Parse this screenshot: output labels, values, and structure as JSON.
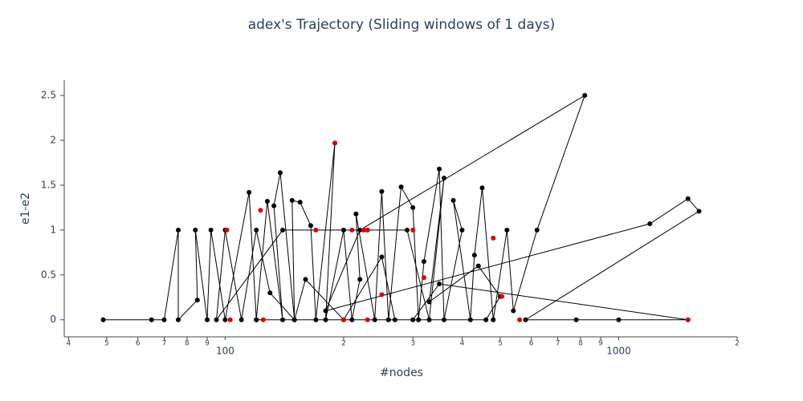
{
  "chart_data": {
    "type": "scatter",
    "title": "adex's Trajectory (Sliding windows of 1 days)",
    "x_label": "#nodes",
    "y_label": "e1-e2",
    "xscale": "log",
    "xlim": [
      39,
      2000
    ],
    "ylim": [
      -0.19,
      2.67
    ],
    "xticks": [
      {
        "value": 40,
        "label": "4"
      },
      {
        "value": 50,
        "label": "5"
      },
      {
        "value": 60,
        "label": "6"
      },
      {
        "value": 70,
        "label": "7"
      },
      {
        "value": 80,
        "label": "8"
      },
      {
        "value": 90,
        "label": "9"
      },
      100,
      {
        "value": 200,
        "label": "2"
      },
      {
        "value": 300,
        "label": "3"
      },
      {
        "value": 400,
        "label": "4"
      },
      {
        "value": 500,
        "label": "5"
      },
      {
        "value": 600,
        "label": "6"
      },
      {
        "value": 700,
        "label": "7"
      },
      {
        "value": 800,
        "label": "8"
      },
      {
        "value": 900,
        "label": "9"
      },
      1000,
      {
        "value": 2000,
        "label": "2"
      }
    ],
    "yticks": [
      0,
      0.5,
      1,
      1.5,
      2,
      2.5
    ],
    "series": [
      {
        "mode": "lines+markers",
        "color": "#000000",
        "x": [
          49,
          65,
          70,
          76,
          76,
          85,
          84,
          90,
          92,
          100,
          115,
          120,
          128,
          140,
          133,
          138,
          150,
          148,
          155,
          165,
          170,
          190,
          180,
          200,
          210,
          220,
          215,
          240,
          250,
          260,
          280,
          300,
          310,
          320,
          350,
          360,
          400,
          380,
          420,
          430,
          450,
          480,
          520,
          540,
          620,
          820,
          220,
          180,
          1200,
          1500,
          1600,
          580,
          1000,
          780,
          1500,
          350,
          300,
          270,
          250,
          200,
          160,
          150,
          130,
          120,
          110,
          100,
          95,
          140,
          230,
          290,
          330,
          360,
          330,
          440,
          500,
          460,
          120
        ],
        "values": [
          0,
          0,
          0,
          1,
          0,
          0.22,
          1,
          0,
          1,
          0,
          1.42,
          0,
          1.32,
          0,
          1.27,
          1.64,
          0,
          1.33,
          1.31,
          1.05,
          0,
          1.97,
          0,
          1,
          0,
          0.45,
          1.18,
          0,
          1.43,
          0,
          1.48,
          1.25,
          0,
          0.65,
          1.68,
          0,
          1,
          1.33,
          0,
          0.72,
          1.47,
          0,
          1,
          0.1,
          1,
          2.5,
          1,
          0.1,
          1.07,
          1.35,
          1.21,
          0,
          0,
          0,
          0,
          0.4,
          0,
          0,
          0.7,
          0,
          0.45,
          0,
          0.3,
          1,
          0,
          1,
          0,
          1,
          1,
          1,
          0,
          1.58,
          0.2,
          0.6,
          0.26,
          0,
          0
        ]
      },
      {
        "mode": "markers",
        "color": "#e00000",
        "x": [
          101,
          103,
          123,
          125,
          190,
          210,
          225,
          230,
          250,
          320,
          300,
          480,
          505,
          560,
          1500,
          170,
          200,
          230
        ],
        "values": [
          1,
          0,
          1.22,
          0,
          1.97,
          1,
          1,
          0,
          0.28,
          0.47,
          1,
          0.91,
          0.26,
          0,
          0,
          1,
          0,
          1
        ]
      }
    ]
  }
}
